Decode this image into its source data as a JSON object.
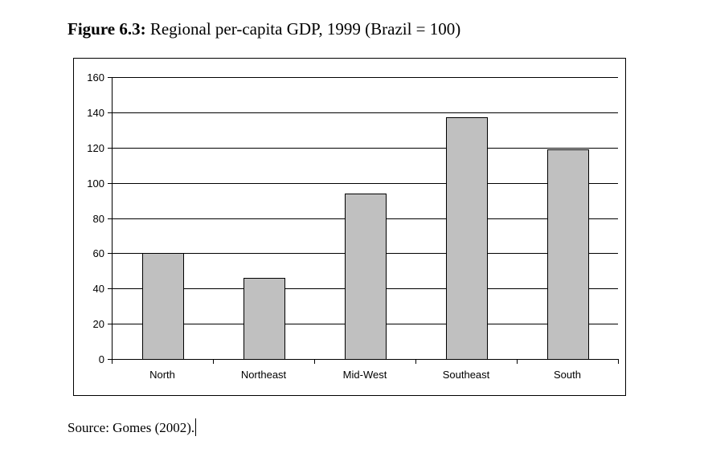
{
  "figure": {
    "label": "Figure 6.3:",
    "caption": "Regional per-capita GDP, 1999 (Brazil = 100)"
  },
  "source": "Source: Gomes (2002).",
  "chart_data": {
    "type": "bar",
    "title": "Regional per-capita GDP, 1999 (Brazil = 100)",
    "xlabel": "",
    "ylabel": "",
    "categories": [
      "North",
      "Northeast",
      "Mid-West",
      "Southeast",
      "South"
    ],
    "values": [
      60,
      46,
      94,
      137,
      119
    ],
    "ylim": [
      0,
      160
    ],
    "yticks": [
      0,
      20,
      40,
      60,
      80,
      100,
      120,
      140,
      160
    ],
    "grid": true,
    "legend": "none",
    "colors": {
      "bar_fill": "#c0c0c0",
      "bar_stroke": "#000000",
      "grid": "#000000"
    }
  }
}
